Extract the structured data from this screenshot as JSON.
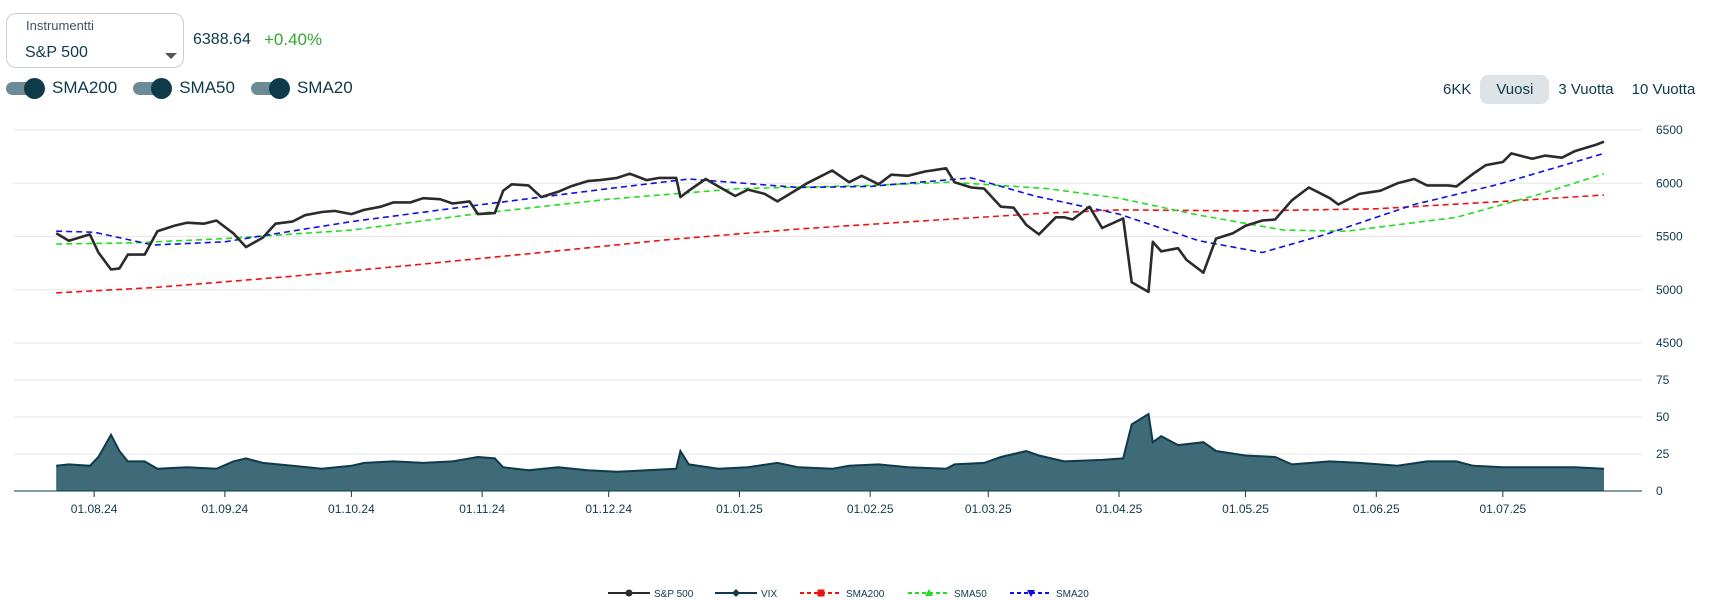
{
  "instrument": {
    "legend": "Instrumentti",
    "selected": "S&P 500"
  },
  "quote": {
    "price": "6388.64",
    "change": "+0.40%"
  },
  "toggles": [
    {
      "label": "SMA200",
      "on": true
    },
    {
      "label": "SMA50",
      "on": true
    },
    {
      "label": "SMA20",
      "on": true
    }
  ],
  "ranges": [
    "6KK",
    "Vuosi",
    "3 Vuotta",
    "10 Vuotta"
  ],
  "active_range": "Vuosi",
  "colors": {
    "sp500": "#2b2b2b",
    "vix": "#0e3a4a",
    "vix_fill": "#3f6a78",
    "sma200": "#ee1111",
    "sma50": "#22dd22",
    "sma20": "#1111dd",
    "positive": "#35a832"
  },
  "chart_data": [
    {
      "type": "line",
      "x_axis": "date",
      "y_ticks": [
        6500,
        6000,
        5500,
        5000,
        4500
      ],
      "ylim": [
        4500,
        6500
      ],
      "grid": true,
      "series": [
        {
          "name": "S&P 500",
          "points": [
            [
              "2024-07-23",
              5530
            ],
            [
              "2024-07-26",
              5460
            ],
            [
              "2024-07-31",
              5520
            ],
            [
              "2024-08-02",
              5350
            ],
            [
              "2024-08-05",
              5190
            ],
            [
              "2024-08-07",
              5200
            ],
            [
              "2024-08-09",
              5330
            ],
            [
              "2024-08-13",
              5330
            ],
            [
              "2024-08-16",
              5550
            ],
            [
              "2024-08-20",
              5600
            ],
            [
              "2024-08-23",
              5630
            ],
            [
              "2024-08-27",
              5620
            ],
            [
              "2024-08-30",
              5650
            ],
            [
              "2024-09-03",
              5530
            ],
            [
              "2024-09-06",
              5400
            ],
            [
              "2024-09-10",
              5490
            ],
            [
              "2024-09-13",
              5620
            ],
            [
              "2024-09-17",
              5640
            ],
            [
              "2024-09-20",
              5700
            ],
            [
              "2024-09-24",
              5730
            ],
            [
              "2024-09-27",
              5740
            ],
            [
              "2024-10-01",
              5710
            ],
            [
              "2024-10-04",
              5750
            ],
            [
              "2024-10-08",
              5780
            ],
            [
              "2024-10-11",
              5820
            ],
            [
              "2024-10-15",
              5820
            ],
            [
              "2024-10-18",
              5860
            ],
            [
              "2024-10-22",
              5850
            ],
            [
              "2024-10-25",
              5810
            ],
            [
              "2024-10-29",
              5830
            ],
            [
              "2024-10-31",
              5710
            ],
            [
              "2024-11-04",
              5720
            ],
            [
              "2024-11-06",
              5930
            ],
            [
              "2024-11-08",
              5990
            ],
            [
              "2024-11-12",
              5980
            ],
            [
              "2024-11-15",
              5870
            ],
            [
              "2024-11-19",
              5920
            ],
            [
              "2024-11-22",
              5970
            ],
            [
              "2024-11-26",
              6020
            ],
            [
              "2024-11-29",
              6030
            ],
            [
              "2024-12-03",
              6050
            ],
            [
              "2024-12-06",
              6090
            ],
            [
              "2024-12-10",
              6030
            ],
            [
              "2024-12-13",
              6050
            ],
            [
              "2024-12-17",
              6050
            ],
            [
              "2024-12-18",
              5870
            ],
            [
              "2024-12-20",
              5930
            ],
            [
              "2024-12-24",
              6040
            ],
            [
              "2024-12-27",
              5970
            ],
            [
              "2024-12-31",
              5880
            ],
            [
              "2025-01-03",
              5940
            ],
            [
              "2025-01-07",
              5900
            ],
            [
              "2025-01-10",
              5830
            ],
            [
              "2025-01-15",
              5950
            ],
            [
              "2025-01-17",
              6000
            ],
            [
              "2025-01-23",
              6120
            ],
            [
              "2025-01-27",
              6010
            ],
            [
              "2025-01-30",
              6070
            ],
            [
              "2025-02-03",
              5990
            ],
            [
              "2025-02-06",
              6080
            ],
            [
              "2025-02-10",
              6070
            ],
            [
              "2025-02-14",
              6110
            ],
            [
              "2025-02-19",
              6140
            ],
            [
              "2025-02-21",
              6010
            ],
            [
              "2025-02-25",
              5960
            ],
            [
              "2025-02-28",
              5950
            ],
            [
              "2025-03-04",
              5780
            ],
            [
              "2025-03-07",
              5770
            ],
            [
              "2025-03-10",
              5610
            ],
            [
              "2025-03-13",
              5520
            ],
            [
              "2025-03-17",
              5680
            ],
            [
              "2025-03-19",
              5680
            ],
            [
              "2025-03-21",
              5660
            ],
            [
              "2025-03-25",
              5780
            ],
            [
              "2025-03-28",
              5580
            ],
            [
              "2025-04-02",
              5670
            ],
            [
              "2025-04-04",
              5070
            ],
            [
              "2025-04-08",
              4980
            ],
            [
              "2025-04-09",
              5450
            ],
            [
              "2025-04-11",
              5360
            ],
            [
              "2025-04-15",
              5390
            ],
            [
              "2025-04-17",
              5280
            ],
            [
              "2025-04-21",
              5160
            ],
            [
              "2025-04-24",
              5480
            ],
            [
              "2025-04-28",
              5530
            ],
            [
              "2025-05-01",
              5600
            ],
            [
              "2025-05-05",
              5650
            ],
            [
              "2025-05-08",
              5660
            ],
            [
              "2025-05-12",
              5840
            ],
            [
              "2025-05-16",
              5960
            ],
            [
              "2025-05-21",
              5860
            ],
            [
              "2025-05-23",
              5800
            ],
            [
              "2025-05-28",
              5900
            ],
            [
              "2025-06-02",
              5930
            ],
            [
              "2025-06-06",
              6000
            ],
            [
              "2025-06-10",
              6040
            ],
            [
              "2025-06-13",
              5980
            ],
            [
              "2025-06-18",
              5980
            ],
            [
              "2025-06-20",
              5970
            ],
            [
              "2025-06-24",
              6090
            ],
            [
              "2025-06-27",
              6170
            ],
            [
              "2025-07-01",
              6200
            ],
            [
              "2025-07-03",
              6280
            ],
            [
              "2025-07-08",
              6230
            ],
            [
              "2025-07-11",
              6260
            ],
            [
              "2025-07-15",
              6240
            ],
            [
              "2025-07-18",
              6300
            ],
            [
              "2025-07-23",
              6360
            ],
            [
              "2025-07-25",
              6390
            ]
          ]
        },
        {
          "name": "SMA200",
          "points": [
            [
              "2024-07-23",
              4970
            ],
            [
              "2024-08-15",
              5020
            ],
            [
              "2024-09-15",
              5120
            ],
            [
              "2024-10-15",
              5230
            ],
            [
              "2024-11-15",
              5350
            ],
            [
              "2024-12-15",
              5470
            ],
            [
              "2025-01-15",
              5570
            ],
            [
              "2025-02-15",
              5650
            ],
            [
              "2025-03-15",
              5720
            ],
            [
              "2025-04-01",
              5750
            ],
            [
              "2025-05-01",
              5740
            ],
            [
              "2025-06-01",
              5760
            ],
            [
              "2025-07-01",
              5830
            ],
            [
              "2025-07-25",
              5890
            ]
          ]
        },
        {
          "name": "SMA50",
          "points": [
            [
              "2024-07-23",
              5430
            ],
            [
              "2024-08-10",
              5440
            ],
            [
              "2024-09-01",
              5480
            ],
            [
              "2024-10-01",
              5560
            ],
            [
              "2024-11-01",
              5720
            ],
            [
              "2024-12-01",
              5850
            ],
            [
              "2025-01-01",
              5950
            ],
            [
              "2025-02-01",
              5980
            ],
            [
              "2025-02-20",
              6010
            ],
            [
              "2025-03-15",
              5950
            ],
            [
              "2025-04-01",
              5860
            ],
            [
              "2025-04-20",
              5700
            ],
            [
              "2025-05-10",
              5560
            ],
            [
              "2025-05-25",
              5550
            ],
            [
              "2025-06-20",
              5680
            ],
            [
              "2025-07-10",
              5900
            ],
            [
              "2025-07-25",
              6090
            ]
          ]
        },
        {
          "name": "SMA20",
          "points": [
            [
              "2024-07-23",
              5550
            ],
            [
              "2024-08-01",
              5540
            ],
            [
              "2024-08-15",
              5420
            ],
            [
              "2024-09-01",
              5450
            ],
            [
              "2024-10-01",
              5640
            ],
            [
              "2024-11-01",
              5800
            ],
            [
              "2024-12-01",
              5950
            ],
            [
              "2024-12-20",
              6040
            ],
            [
              "2025-01-15",
              5960
            ],
            [
              "2025-02-01",
              5970
            ],
            [
              "2025-02-25",
              6050
            ],
            [
              "2025-03-12",
              5880
            ],
            [
              "2025-04-01",
              5710
            ],
            [
              "2025-04-20",
              5460
            ],
            [
              "2025-05-05",
              5350
            ],
            [
              "2025-05-20",
              5520
            ],
            [
              "2025-06-10",
              5800
            ],
            [
              "2025-06-30",
              5990
            ],
            [
              "2025-07-25",
              6280
            ]
          ]
        }
      ]
    },
    {
      "type": "area",
      "x_axis": "date",
      "y_ticks": [
        75,
        50,
        25,
        0
      ],
      "ylim": [
        0,
        75
      ],
      "grid": true,
      "x_tick_labels": [
        "01.08.24",
        "01.09.24",
        "01.10.24",
        "01.11.24",
        "01.12.24",
        "01.01.25",
        "01.02.25",
        "01.03.25",
        "01.04.25",
        "01.05.25",
        "01.06.25",
        "01.07.25"
      ],
      "series": [
        {
          "name": "VIX",
          "points": [
            [
              "2024-07-23",
              17
            ],
            [
              "2024-07-26",
              18
            ],
            [
              "2024-07-31",
              17
            ],
            [
              "2024-08-02",
              23
            ],
            [
              "2024-08-05",
              38
            ],
            [
              "2024-08-07",
              27
            ],
            [
              "2024-08-09",
              20
            ],
            [
              "2024-08-13",
              20
            ],
            [
              "2024-08-16",
              15
            ],
            [
              "2024-08-23",
              16
            ],
            [
              "2024-08-30",
              15
            ],
            [
              "2024-09-03",
              20
            ],
            [
              "2024-09-06",
              22
            ],
            [
              "2024-09-10",
              19
            ],
            [
              "2024-09-17",
              17
            ],
            [
              "2024-09-24",
              15
            ],
            [
              "2024-10-01",
              17
            ],
            [
              "2024-10-04",
              19
            ],
            [
              "2024-10-11",
              20
            ],
            [
              "2024-10-18",
              19
            ],
            [
              "2024-10-25",
              20
            ],
            [
              "2024-10-31",
              23
            ],
            [
              "2024-11-04",
              22
            ],
            [
              "2024-11-06",
              16
            ],
            [
              "2024-11-12",
              14
            ],
            [
              "2024-11-19",
              16
            ],
            [
              "2024-11-26",
              14
            ],
            [
              "2024-12-03",
              13
            ],
            [
              "2024-12-10",
              14
            ],
            [
              "2024-12-17",
              15
            ],
            [
              "2024-12-18",
              27
            ],
            [
              "2024-12-20",
              18
            ],
            [
              "2024-12-27",
              15
            ],
            [
              "2025-01-03",
              16
            ],
            [
              "2025-01-10",
              19
            ],
            [
              "2025-01-15",
              16
            ],
            [
              "2025-01-23",
              15
            ],
            [
              "2025-01-27",
              17
            ],
            [
              "2025-02-03",
              18
            ],
            [
              "2025-02-10",
              16
            ],
            [
              "2025-02-19",
              15
            ],
            [
              "2025-02-21",
              18
            ],
            [
              "2025-02-28",
              19
            ],
            [
              "2025-03-04",
              23
            ],
            [
              "2025-03-10",
              27
            ],
            [
              "2025-03-13",
              24
            ],
            [
              "2025-03-19",
              20
            ],
            [
              "2025-03-28",
              21
            ],
            [
              "2025-04-02",
              22
            ],
            [
              "2025-04-04",
              45
            ],
            [
              "2025-04-08",
              52
            ],
            [
              "2025-04-09",
              33
            ],
            [
              "2025-04-11",
              37
            ],
            [
              "2025-04-15",
              31
            ],
            [
              "2025-04-21",
              33
            ],
            [
              "2025-04-24",
              27
            ],
            [
              "2025-05-01",
              24
            ],
            [
              "2025-05-08",
              23
            ],
            [
              "2025-05-12",
              18
            ],
            [
              "2025-05-21",
              20
            ],
            [
              "2025-05-28",
              19
            ],
            [
              "2025-06-06",
              17
            ],
            [
              "2025-06-13",
              20
            ],
            [
              "2025-06-20",
              20
            ],
            [
              "2025-06-24",
              17
            ],
            [
              "2025-07-01",
              16
            ],
            [
              "2025-07-10",
              16
            ],
            [
              "2025-07-18",
              16
            ],
            [
              "2025-07-25",
              15
            ]
          ]
        }
      ]
    }
  ],
  "legend": [
    "S&P 500",
    "VIX",
    "SMA200",
    "SMA50",
    "SMA20"
  ]
}
